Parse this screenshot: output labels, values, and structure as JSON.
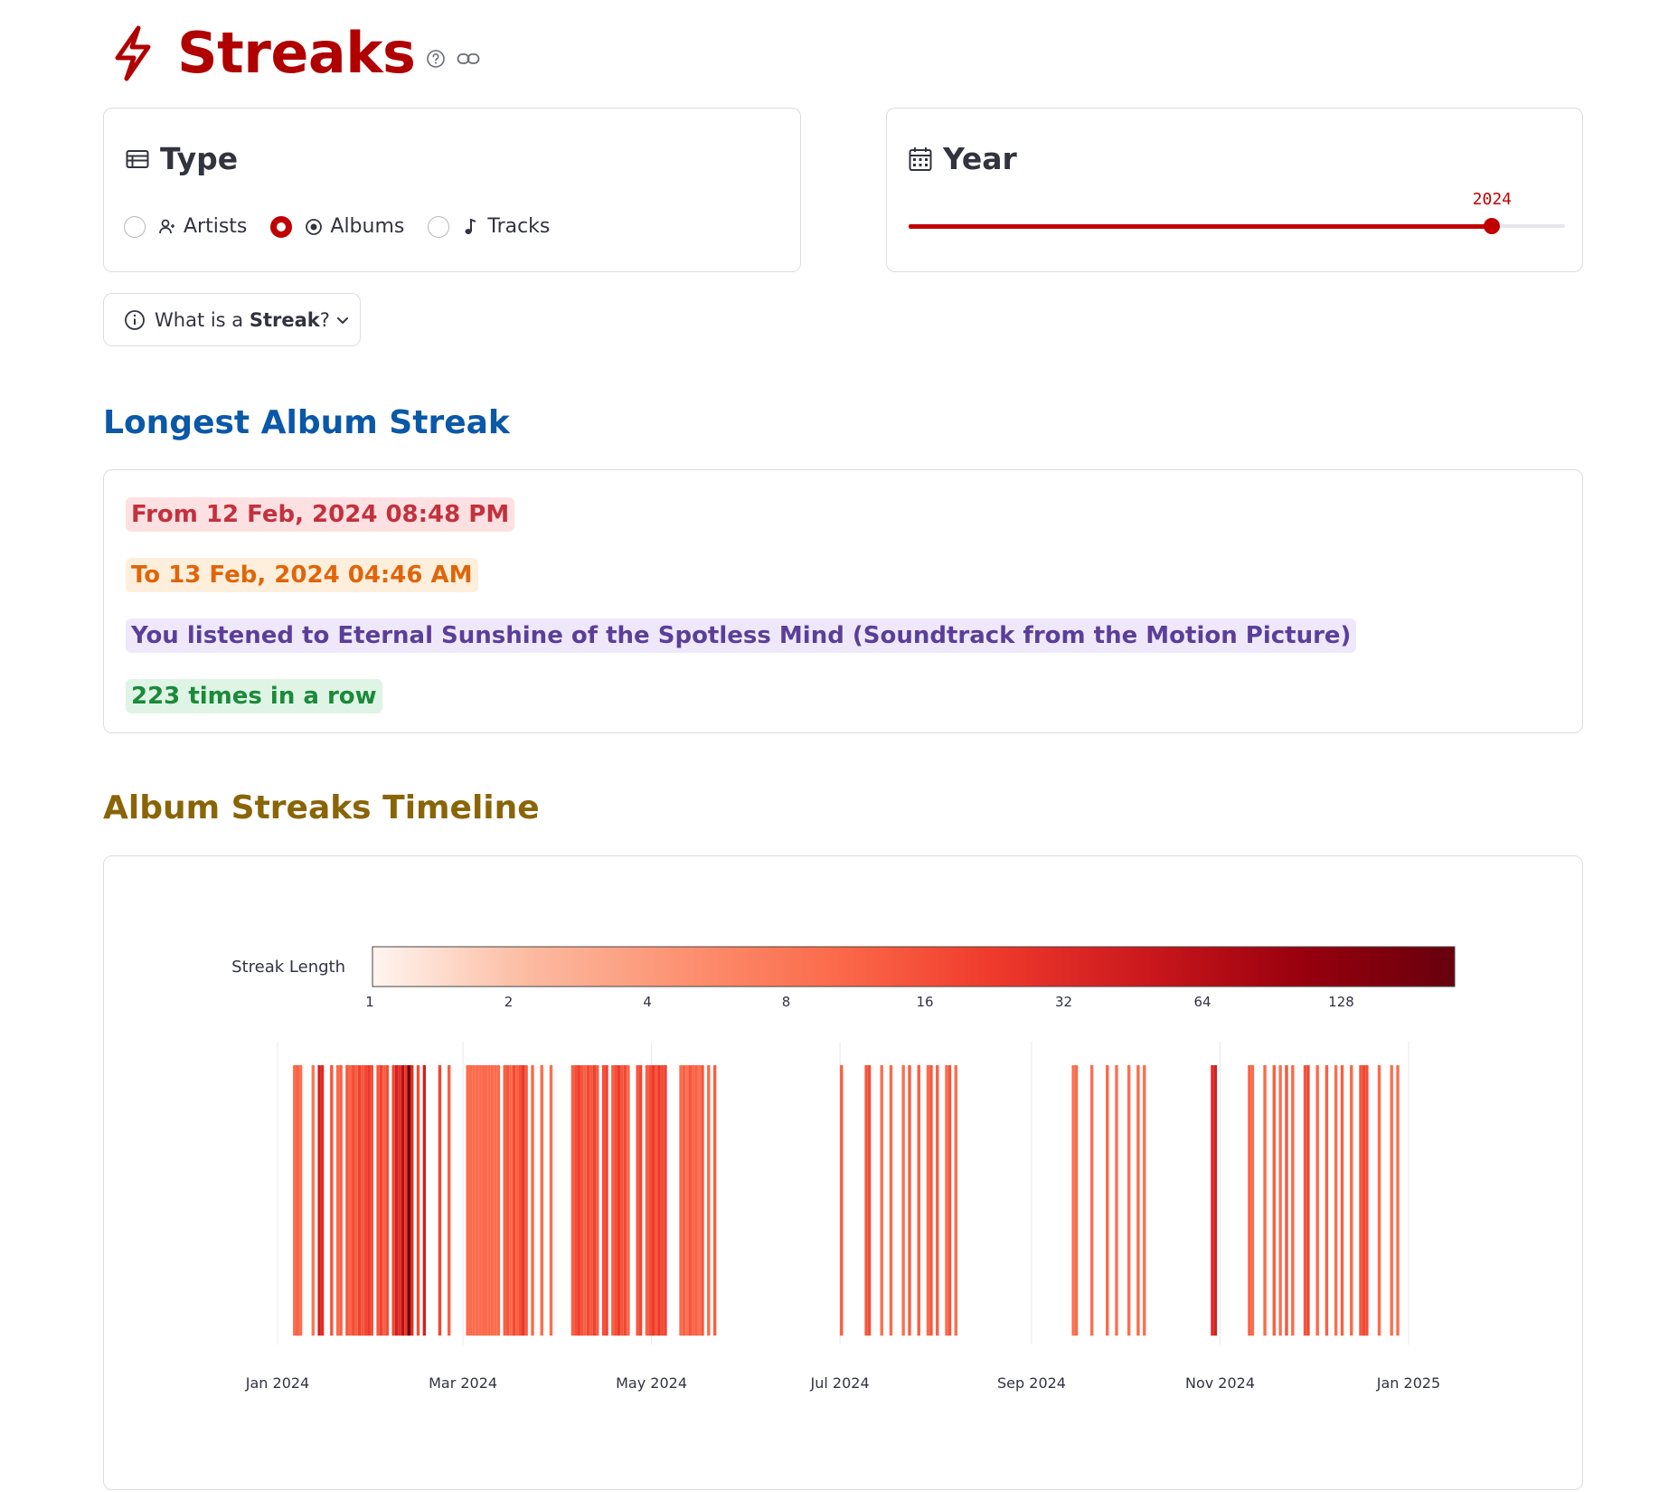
{
  "header": {
    "title": "Streaks"
  },
  "type_card": {
    "title": "Type",
    "options": [
      {
        "label": "Artists",
        "selected": false
      },
      {
        "label": "Albums",
        "selected": true
      },
      {
        "label": "Tracks",
        "selected": false
      }
    ]
  },
  "year_card": {
    "title": "Year",
    "value": "2024",
    "min": 2016,
    "max": 2025,
    "value_num": 2024
  },
  "expander": {
    "prefix": "What is a ",
    "bold": "Streak",
    "suffix": "?"
  },
  "longest": {
    "heading": "Longest Album Streak",
    "from": "From 12 Feb, 2024 08:48 PM",
    "to": "To 13 Feb, 2024 04:46 AM",
    "album": "You listened to Eternal Sunshine of the Spotless Mind (Soundtrack from the Motion Picture)",
    "times": "223 times in a row"
  },
  "timeline": {
    "heading": "Album Streaks Timeline"
  },
  "colors": {
    "accent": "#c00000",
    "title_blue": "#0a58a8",
    "title_gold": "#8a6508"
  },
  "chart_data": {
    "type": "heatmap",
    "colorbar": {
      "title": "Streak Length",
      "scale": "log2",
      "ticks": [
        "1",
        "2",
        "4",
        "8",
        "16",
        "32",
        "64",
        "128"
      ],
      "range": [
        1,
        223
      ],
      "colors": [
        "#fff5f0",
        "#fcbba1",
        "#fc9272",
        "#fb6a4a",
        "#ef3b2c",
        "#cb181d",
        "#99000d",
        "#67000d"
      ]
    },
    "x_ticks": [
      "Jan 2024",
      "Mar 2024",
      "May 2024",
      "Jul 2024",
      "Sep 2024",
      "Nov 2024",
      "Jan 2025"
    ],
    "x_tick_dates": [
      "2024-01-01",
      "2024-03-01",
      "2024-05-01",
      "2024-07-01",
      "2024-09-01",
      "2024-11-01",
      "2025-01-01"
    ],
    "grid": true,
    "streaks": [
      {
        "date": "2024-01-06",
        "length": 10
      },
      {
        "date": "2024-01-07",
        "length": 12
      },
      {
        "date": "2024-01-08",
        "length": 9
      },
      {
        "date": "2024-01-12",
        "length": 8
      },
      {
        "date": "2024-01-14",
        "length": 40
      },
      {
        "date": "2024-01-15",
        "length": 30
      },
      {
        "date": "2024-01-18",
        "length": 14
      },
      {
        "date": "2024-01-20",
        "length": 10
      },
      {
        "date": "2024-01-21",
        "length": 12
      },
      {
        "date": "2024-01-23",
        "length": 14
      },
      {
        "date": "2024-01-24",
        "length": 11
      },
      {
        "date": "2024-01-25",
        "length": 16
      },
      {
        "date": "2024-01-26",
        "length": 12
      },
      {
        "date": "2024-01-27",
        "length": 20
      },
      {
        "date": "2024-01-28",
        "length": 14
      },
      {
        "date": "2024-01-29",
        "length": 18
      },
      {
        "date": "2024-01-30",
        "length": 24
      },
      {
        "date": "2024-01-31",
        "length": 16
      },
      {
        "date": "2024-02-02",
        "length": 14
      },
      {
        "date": "2024-02-03",
        "length": 20
      },
      {
        "date": "2024-02-04",
        "length": 12
      },
      {
        "date": "2024-02-05",
        "length": 16
      },
      {
        "date": "2024-02-07",
        "length": 18
      },
      {
        "date": "2024-02-08",
        "length": 40
      },
      {
        "date": "2024-02-09",
        "length": 28
      },
      {
        "date": "2024-02-10",
        "length": 60
      },
      {
        "date": "2024-02-11",
        "length": 24
      },
      {
        "date": "2024-02-12",
        "length": 223
      },
      {
        "date": "2024-02-13",
        "length": 30
      },
      {
        "date": "2024-02-15",
        "length": 16
      },
      {
        "date": "2024-02-17",
        "length": 40
      },
      {
        "date": "2024-02-22",
        "length": 18
      },
      {
        "date": "2024-02-25",
        "length": 12
      },
      {
        "date": "2024-03-02",
        "length": 10
      },
      {
        "date": "2024-03-03",
        "length": 10
      },
      {
        "date": "2024-03-04",
        "length": 10
      },
      {
        "date": "2024-03-05",
        "length": 10
      },
      {
        "date": "2024-03-06",
        "length": 10
      },
      {
        "date": "2024-03-07",
        "length": 10
      },
      {
        "date": "2024-03-08",
        "length": 10
      },
      {
        "date": "2024-03-09",
        "length": 10
      },
      {
        "date": "2024-03-10",
        "length": 10
      },
      {
        "date": "2024-03-11",
        "length": 10
      },
      {
        "date": "2024-03-12",
        "length": 10
      },
      {
        "date": "2024-03-14",
        "length": 12
      },
      {
        "date": "2024-03-15",
        "length": 14
      },
      {
        "date": "2024-03-16",
        "length": 10
      },
      {
        "date": "2024-03-17",
        "length": 18
      },
      {
        "date": "2024-03-18",
        "length": 12
      },
      {
        "date": "2024-03-19",
        "length": 16
      },
      {
        "date": "2024-03-20",
        "length": 24
      },
      {
        "date": "2024-03-21",
        "length": 12
      },
      {
        "date": "2024-03-23",
        "length": 10
      },
      {
        "date": "2024-03-26",
        "length": 9
      },
      {
        "date": "2024-03-29",
        "length": 9
      },
      {
        "date": "2024-04-05",
        "length": 12
      },
      {
        "date": "2024-04-06",
        "length": 16
      },
      {
        "date": "2024-04-07",
        "length": 20
      },
      {
        "date": "2024-04-08",
        "length": 14
      },
      {
        "date": "2024-04-09",
        "length": 12
      },
      {
        "date": "2024-04-10",
        "length": 18
      },
      {
        "date": "2024-04-11",
        "length": 14
      },
      {
        "date": "2024-04-12",
        "length": 20
      },
      {
        "date": "2024-04-13",
        "length": 12
      },
      {
        "date": "2024-04-15",
        "length": 16
      },
      {
        "date": "2024-04-16",
        "length": 20
      },
      {
        "date": "2024-04-18",
        "length": 12
      },
      {
        "date": "2024-04-19",
        "length": 16
      },
      {
        "date": "2024-04-20",
        "length": 22
      },
      {
        "date": "2024-04-21",
        "length": 14
      },
      {
        "date": "2024-04-22",
        "length": 18
      },
      {
        "date": "2024-04-23",
        "length": 10
      },
      {
        "date": "2024-04-26",
        "length": 14
      },
      {
        "date": "2024-04-27",
        "length": 18
      },
      {
        "date": "2024-04-29",
        "length": 12
      },
      {
        "date": "2024-04-30",
        "length": 16
      },
      {
        "date": "2024-05-01",
        "length": 22
      },
      {
        "date": "2024-05-02",
        "length": 14
      },
      {
        "date": "2024-05-03",
        "length": 24
      },
      {
        "date": "2024-05-04",
        "length": 16
      },
      {
        "date": "2024-05-05",
        "length": 20
      },
      {
        "date": "2024-05-10",
        "length": 10
      },
      {
        "date": "2024-05-11",
        "length": 12
      },
      {
        "date": "2024-05-12",
        "length": 9
      },
      {
        "date": "2024-05-13",
        "length": 14
      },
      {
        "date": "2024-05-14",
        "length": 10
      },
      {
        "date": "2024-05-15",
        "length": 12
      },
      {
        "date": "2024-05-16",
        "length": 9
      },
      {
        "date": "2024-05-17",
        "length": 14
      },
      {
        "date": "2024-05-19",
        "length": 10
      },
      {
        "date": "2024-05-21",
        "length": 12
      },
      {
        "date": "2024-07-01",
        "length": 12
      },
      {
        "date": "2024-07-09",
        "length": 14
      },
      {
        "date": "2024-07-10",
        "length": 16
      },
      {
        "date": "2024-07-14",
        "length": 9
      },
      {
        "date": "2024-07-17",
        "length": 10
      },
      {
        "date": "2024-07-21",
        "length": 9
      },
      {
        "date": "2024-07-23",
        "length": 12
      },
      {
        "date": "2024-07-26",
        "length": 12
      },
      {
        "date": "2024-07-29",
        "length": 10
      },
      {
        "date": "2024-07-30",
        "length": 14
      },
      {
        "date": "2024-08-01",
        "length": 12
      },
      {
        "date": "2024-08-04",
        "length": 10
      },
      {
        "date": "2024-08-05",
        "length": 14
      },
      {
        "date": "2024-08-07",
        "length": 9
      },
      {
        "date": "2024-09-14",
        "length": 9
      },
      {
        "date": "2024-09-15",
        "length": 10
      },
      {
        "date": "2024-09-20",
        "length": 9
      },
      {
        "date": "2024-09-25",
        "length": 10
      },
      {
        "date": "2024-09-28",
        "length": 9
      },
      {
        "date": "2024-10-02",
        "length": 9
      },
      {
        "date": "2024-10-05",
        "length": 10
      },
      {
        "date": "2024-10-07",
        "length": 9
      },
      {
        "date": "2024-10-29",
        "length": 32
      },
      {
        "date": "2024-10-30",
        "length": 40
      },
      {
        "date": "2024-11-10",
        "length": 12
      },
      {
        "date": "2024-11-11",
        "length": 10
      },
      {
        "date": "2024-11-15",
        "length": 10
      },
      {
        "date": "2024-11-18",
        "length": 12
      },
      {
        "date": "2024-11-20",
        "length": 9
      },
      {
        "date": "2024-11-22",
        "length": 14
      },
      {
        "date": "2024-11-24",
        "length": 10
      },
      {
        "date": "2024-11-28",
        "length": 14
      },
      {
        "date": "2024-11-29",
        "length": 18
      },
      {
        "date": "2024-12-02",
        "length": 10
      },
      {
        "date": "2024-12-05",
        "length": 12
      },
      {
        "date": "2024-12-08",
        "length": 9
      },
      {
        "date": "2024-12-10",
        "length": 12
      },
      {
        "date": "2024-12-13",
        "length": 10
      },
      {
        "date": "2024-12-16",
        "length": 14
      },
      {
        "date": "2024-12-17",
        "length": 18
      },
      {
        "date": "2024-12-18",
        "length": 16
      },
      {
        "date": "2024-12-22",
        "length": 10
      },
      {
        "date": "2024-12-26",
        "length": 9
      },
      {
        "date": "2024-12-28",
        "length": 9
      }
    ]
  }
}
